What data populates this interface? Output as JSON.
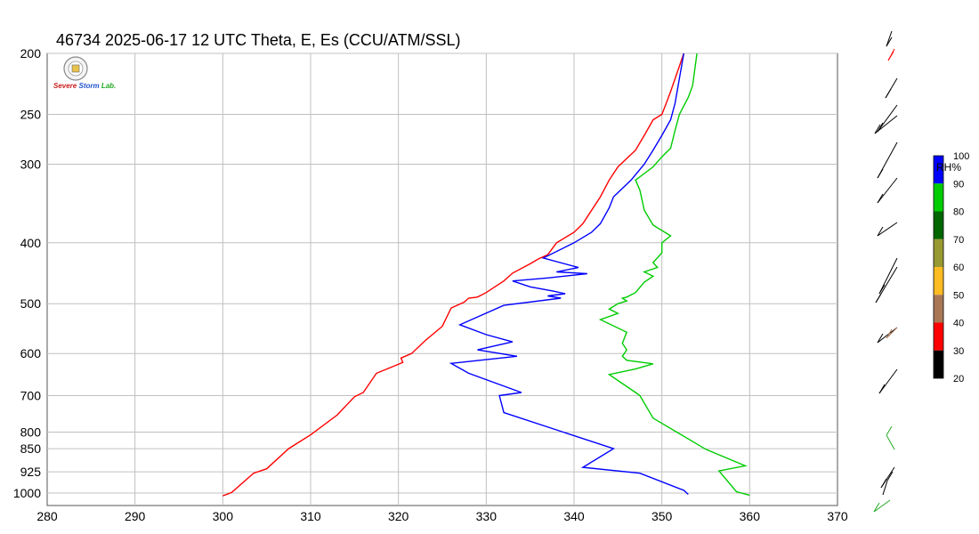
{
  "title": "46734  2025-06-17 12 UTC  Theta, E, Es (CCU/ATM/SSL)",
  "logo": {
    "line1": "Severe",
    "line2": "Storm",
    "line3": "Lab."
  },
  "colorbar": {
    "label": "RH%",
    "ticks": [
      "100",
      "90",
      "80",
      "70",
      "60",
      "50",
      "40",
      "30",
      "20"
    ],
    "colors": [
      "#0000ff",
      "#00cc00",
      "#006600",
      "#999933",
      "#ffbb22",
      "#aa7755",
      "#ff0000",
      "#000000"
    ]
  },
  "chart_data": {
    "type": "line",
    "xlim": [
      280,
      370
    ],
    "xticks": [
      280,
      290,
      300,
      310,
      320,
      330,
      340,
      350,
      360,
      370
    ],
    "yaxis": "pressure (log scale)",
    "ylim": [
      1000,
      200
    ],
    "yticks": [
      200,
      250,
      300,
      400,
      500,
      600,
      700,
      800,
      850,
      925,
      1000
    ],
    "grid": true,
    "series": [
      {
        "color": "#ff0000",
        "points": [
          [
            300,
            1010
          ],
          [
            301,
            998
          ],
          [
            303.5,
            930
          ],
          [
            305,
            915
          ],
          [
            307.5,
            850
          ],
          [
            310,
            808
          ],
          [
            313,
            752
          ],
          [
            315,
            703
          ],
          [
            316,
            692
          ],
          [
            317.5,
            645
          ],
          [
            320.5,
            620
          ],
          [
            320.3,
            610
          ],
          [
            321.5,
            600
          ],
          [
            323,
            573
          ],
          [
            325,
            543
          ],
          [
            326,
            508
          ],
          [
            327.5,
            497
          ],
          [
            328,
            490
          ],
          [
            329,
            488
          ],
          [
            330,
            480
          ],
          [
            332,
            460
          ],
          [
            333,
            447
          ],
          [
            335,
            432
          ],
          [
            336,
            424
          ],
          [
            337,
            418
          ],
          [
            338,
            400
          ],
          [
            340,
            385
          ],
          [
            341,
            373
          ],
          [
            343,
            338
          ],
          [
            344,
            318
          ],
          [
            345,
            303
          ],
          [
            347,
            285
          ],
          [
            348,
            270
          ],
          [
            349,
            255
          ],
          [
            350,
            250
          ],
          [
            350.5,
            240
          ],
          [
            351,
            230
          ],
          [
            352.5,
            200
          ]
        ]
      },
      {
        "color": "#0000ff",
        "points": [
          [
            353,
            1005
          ],
          [
            352.5,
            990
          ],
          [
            347.5,
            930
          ],
          [
            341,
            910
          ],
          [
            344.5,
            850
          ],
          [
            332,
            745
          ],
          [
            331.5,
            700
          ],
          [
            334,
            692
          ],
          [
            328,
            645
          ],
          [
            326,
            622
          ],
          [
            333.5,
            606
          ],
          [
            329,
            592
          ],
          [
            333,
            575
          ],
          [
            330,
            560
          ],
          [
            327,
            540
          ],
          [
            332,
            503
          ],
          [
            338.5,
            490
          ],
          [
            337,
            486
          ],
          [
            339,
            482
          ],
          [
            337.5,
            477
          ],
          [
            335,
            470
          ],
          [
            333,
            460
          ],
          [
            337,
            455
          ],
          [
            341.5,
            448
          ],
          [
            338,
            445
          ],
          [
            340.5,
            438
          ],
          [
            336.5,
            423
          ],
          [
            340,
            400
          ],
          [
            342,
            385
          ],
          [
            343,
            373
          ],
          [
            344,
            352
          ],
          [
            344.5,
            338
          ],
          [
            346.5,
            318
          ],
          [
            348,
            300
          ],
          [
            349,
            285
          ],
          [
            350,
            270
          ],
          [
            351,
            255
          ],
          [
            351.5,
            240
          ],
          [
            352.5,
            200
          ]
        ]
      },
      {
        "color": "#00cc00",
        "points": [
          [
            360,
            1008
          ],
          [
            358.5,
            995
          ],
          [
            356.5,
            922
          ],
          [
            359.5,
            905
          ],
          [
            355,
            852
          ],
          [
            349,
            760
          ],
          [
            347.5,
            700
          ],
          [
            347,
            692
          ],
          [
            344,
            648
          ],
          [
            347,
            635
          ],
          [
            349,
            623
          ],
          [
            346,
            615
          ],
          [
            345.5,
            606
          ],
          [
            346,
            592
          ],
          [
            345.5,
            578
          ],
          [
            346,
            555
          ],
          [
            343,
            530
          ],
          [
            345,
            518
          ],
          [
            344,
            510
          ],
          [
            345,
            500
          ],
          [
            346,
            495
          ],
          [
            345.5,
            490
          ],
          [
            346,
            488
          ],
          [
            347,
            480
          ],
          [
            348,
            462
          ],
          [
            349,
            452
          ],
          [
            348,
            445
          ],
          [
            349.5,
            438
          ],
          [
            349,
            430
          ],
          [
            350,
            415
          ],
          [
            350,
            400
          ],
          [
            351,
            390
          ],
          [
            349,
            375
          ],
          [
            348,
            355
          ],
          [
            347.5,
            330
          ],
          [
            347,
            318
          ],
          [
            349,
            303
          ],
          [
            350,
            292
          ],
          [
            351,
            283
          ],
          [
            351.5,
            265
          ],
          [
            352,
            250
          ],
          [
            353,
            235
          ],
          [
            353.5,
            225
          ],
          [
            354,
            200
          ]
        ]
      }
    ]
  }
}
